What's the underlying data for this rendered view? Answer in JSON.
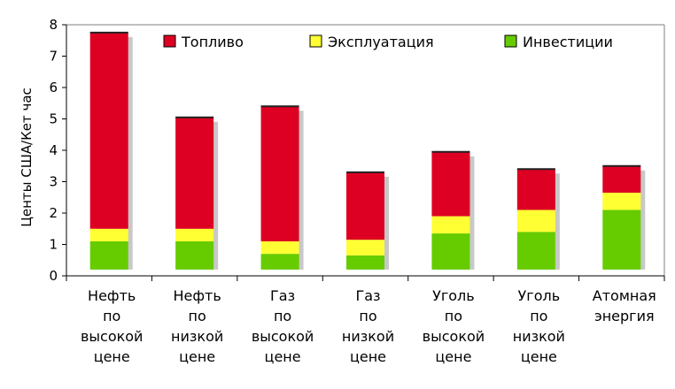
{
  "chart_data": {
    "type": "bar",
    "stacked": true,
    "ylabel": "Центы США/Кет час",
    "ylim": [
      0,
      8
    ],
    "yticks": [
      "0",
      "1",
      "2",
      "3",
      "4",
      "5",
      "6",
      "7",
      "8"
    ],
    "grid": false,
    "legend_position": "top",
    "categories": [
      [
        "Нефть",
        "по",
        "высокой",
        "цене"
      ],
      [
        "Нефть",
        "по",
        "низкой",
        "цене"
      ],
      [
        "Газ",
        "по",
        "высокой",
        "цене"
      ],
      [
        "Газ",
        "по",
        "низкой",
        "цене"
      ],
      [
        "Уголь",
        "по",
        "высокой",
        "цене"
      ],
      [
        "Уголь",
        "по",
        "низкой",
        "цене"
      ],
      [
        "Атомная",
        "энергия"
      ]
    ],
    "series": [
      {
        "name": "Инвестиции",
        "color": "#66cc00",
        "values": [
          0.9,
          0.9,
          0.5,
          0.45,
          1.15,
          1.2,
          1.9
        ]
      },
      {
        "name": "Эксплуатация",
        "color": "#ffff33",
        "values": [
          0.4,
          0.4,
          0.4,
          0.5,
          0.55,
          0.7,
          0.55
        ]
      },
      {
        "name": "Топливо",
        "color": "#dd0022",
        "values": [
          6.25,
          3.55,
          4.3,
          2.15,
          2.05,
          1.3,
          0.85
        ]
      }
    ],
    "legend_order": [
      "Топливо",
      "Эксплуатация",
      "Инвестиции"
    ]
  }
}
